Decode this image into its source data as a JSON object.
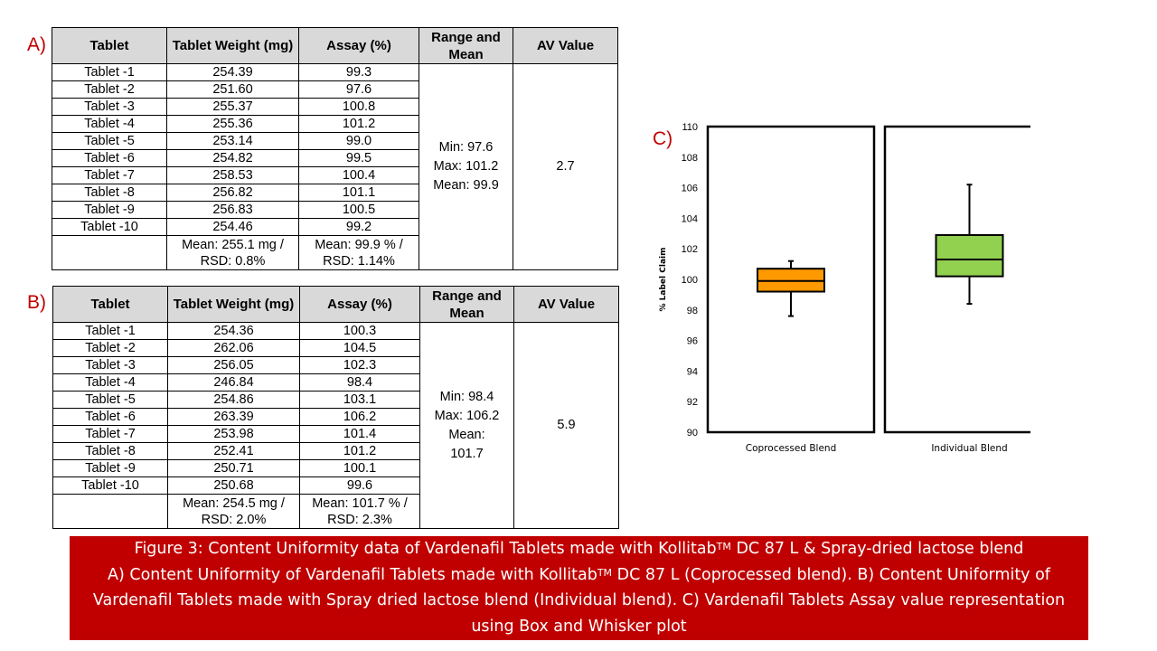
{
  "panels": {
    "a": "A)",
    "b": "B)",
    "c": "C)"
  },
  "headers": {
    "tablet": "Tablet",
    "weight": "Tablet Weight (mg)",
    "assay": "Assay (%)",
    "range": "Range and Mean",
    "av": "AV Value"
  },
  "tableA": {
    "rows": [
      {
        "tablet": "Tablet -1",
        "weight": "254.39",
        "assay": "99.3"
      },
      {
        "tablet": "Tablet -2",
        "weight": "251.60",
        "assay": "97.6"
      },
      {
        "tablet": "Tablet -3",
        "weight": "255.37",
        "assay": "100.8"
      },
      {
        "tablet": "Tablet -4",
        "weight": "255.36",
        "assay": "101.2"
      },
      {
        "tablet": "Tablet -5",
        "weight": "253.14",
        "assay": "99.0"
      },
      {
        "tablet": "Tablet -6",
        "weight": "254.82",
        "assay": "99.5"
      },
      {
        "tablet": "Tablet -7",
        "weight": "258.53",
        "assay": "100.4"
      },
      {
        "tablet": "Tablet -8",
        "weight": "256.82",
        "assay": "101.1"
      },
      {
        "tablet": "Tablet -9",
        "weight": "256.83",
        "assay": "100.5"
      },
      {
        "tablet": "Tablet -10",
        "weight": "254.46",
        "assay": "99.2"
      }
    ],
    "range": {
      "min": "Min: 97.6",
      "max": "Max: 101.2",
      "mean": "Mean: 99.9"
    },
    "av": "2.7",
    "footer": {
      "weight_l1": "Mean: 255.1 mg /",
      "weight_l2": "RSD: 0.8%",
      "assay_l1": "Mean: 99.9 % /",
      "assay_l2": "RSD: 1.14%"
    }
  },
  "tableB": {
    "rows": [
      {
        "tablet": "Tablet -1",
        "weight": "254.36",
        "assay": "100.3"
      },
      {
        "tablet": "Tablet -2",
        "weight": "262.06",
        "assay": "104.5"
      },
      {
        "tablet": "Tablet -3",
        "weight": "256.05",
        "assay": "102.3"
      },
      {
        "tablet": "Tablet -4",
        "weight": "246.84",
        "assay": "98.4"
      },
      {
        "tablet": "Tablet -5",
        "weight": "254.86",
        "assay": "103.1"
      },
      {
        "tablet": "Tablet -6",
        "weight": "263.39",
        "assay": "106.2"
      },
      {
        "tablet": "Tablet -7",
        "weight": "253.98",
        "assay": "101.4"
      },
      {
        "tablet": "Tablet -8",
        "weight": "252.41",
        "assay": "101.2"
      },
      {
        "tablet": "Tablet -9",
        "weight": "250.71",
        "assay": "100.1"
      },
      {
        "tablet": "Tablet -10",
        "weight": "250.68",
        "assay": "99.6"
      }
    ],
    "range": {
      "min": "Min: 98.4",
      "max": "Max: 106.2",
      "mean_label": "Mean:",
      "mean_value": "101.7"
    },
    "av": "5.9",
    "footer": {
      "weight_l1": "Mean: 254.5 mg /",
      "weight_l2": "RSD: 2.0%",
      "assay_l1": "Mean: 101.7 % /",
      "assay_l2": "RSD: 2.3%"
    }
  },
  "chart_data": {
    "type": "box",
    "ylabel": "% Label Claim",
    "ylim": [
      90,
      110
    ],
    "yticks": [
      90,
      92,
      94,
      96,
      98,
      100,
      102,
      104,
      106,
      108,
      110
    ],
    "grid": false,
    "boxes": [
      {
        "name": "Coprocessed Blend",
        "min": 97.6,
        "q1": 99.2,
        "median": 99.9,
        "q3": 100.7,
        "max": 101.2,
        "color": "#ff9900"
      },
      {
        "name": "Individual Blend",
        "min": 98.4,
        "q1": 100.2,
        "median": 101.3,
        "q3": 102.9,
        "max": 106.2,
        "color": "#92d050"
      }
    ]
  },
  "caption": {
    "l1_pre": "Figure 3: Content Uniformity data of Vardenafil Tablets made with Kollitab",
    "tm": "TM",
    "l1_post": " DC 87 L & Spray-dried lactose blend",
    "l2_pre": "A) Content Uniformity of Vardenafil Tablets made with Kollitab",
    "l2_post": " DC 87 L (Coprocessed blend). B) Content Uniformity of Vardenafil Tablets made with Spray dried lactose blend (Individual blend). C) Vardenafil Tablets Assay value representation using Box and Whisker plot"
  }
}
